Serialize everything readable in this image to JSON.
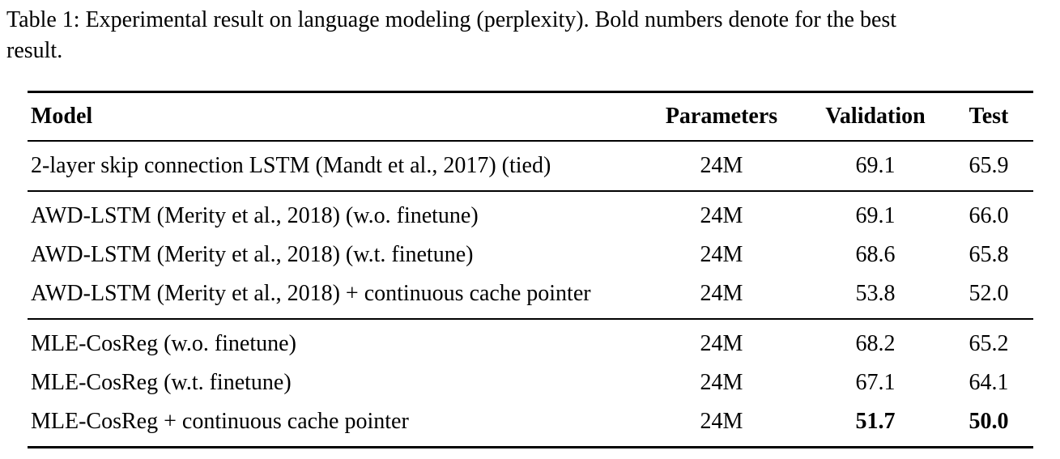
{
  "caption": {
    "line1": "Table 1: Experimental result on language modeling (perplexity). Bold numbers denote for the best",
    "line2": "result."
  },
  "table": {
    "headers": {
      "model": "Model",
      "parameters": "Parameters",
      "validation": "Validation",
      "test": "Test"
    },
    "groups": [
      {
        "rows": [
          {
            "model": "2-layer skip connection LSTM (Mandt et al., 2017) (tied)",
            "parameters": "24M",
            "validation": "69.1",
            "test": "65.9"
          }
        ]
      },
      {
        "rows": [
          {
            "model": "AWD-LSTM (Merity et al., 2018) (w.o. finetune)",
            "parameters": "24M",
            "validation": "69.1",
            "test": "66.0"
          },
          {
            "model": "AWD-LSTM (Merity et al., 2018) (w.t. finetune)",
            "parameters": "24M",
            "validation": "68.6",
            "test": "65.8"
          },
          {
            "model": "AWD-LSTM (Merity et al., 2018) + continuous cache pointer",
            "parameters": "24M",
            "validation": "53.8",
            "test": "52.0"
          }
        ]
      },
      {
        "rows": [
          {
            "model": "MLE-CosReg (w.o. finetune)",
            "parameters": "24M",
            "validation": "68.2",
            "test": "65.2"
          },
          {
            "model": "MLE-CosReg (w.t. finetune)",
            "parameters": "24M",
            "validation": "67.1",
            "test": "64.1"
          },
          {
            "model": "MLE-CosReg + continuous cache pointer",
            "parameters": "24M",
            "validation": "51.7",
            "test": "50.0",
            "bold": true
          }
        ]
      }
    ]
  }
}
